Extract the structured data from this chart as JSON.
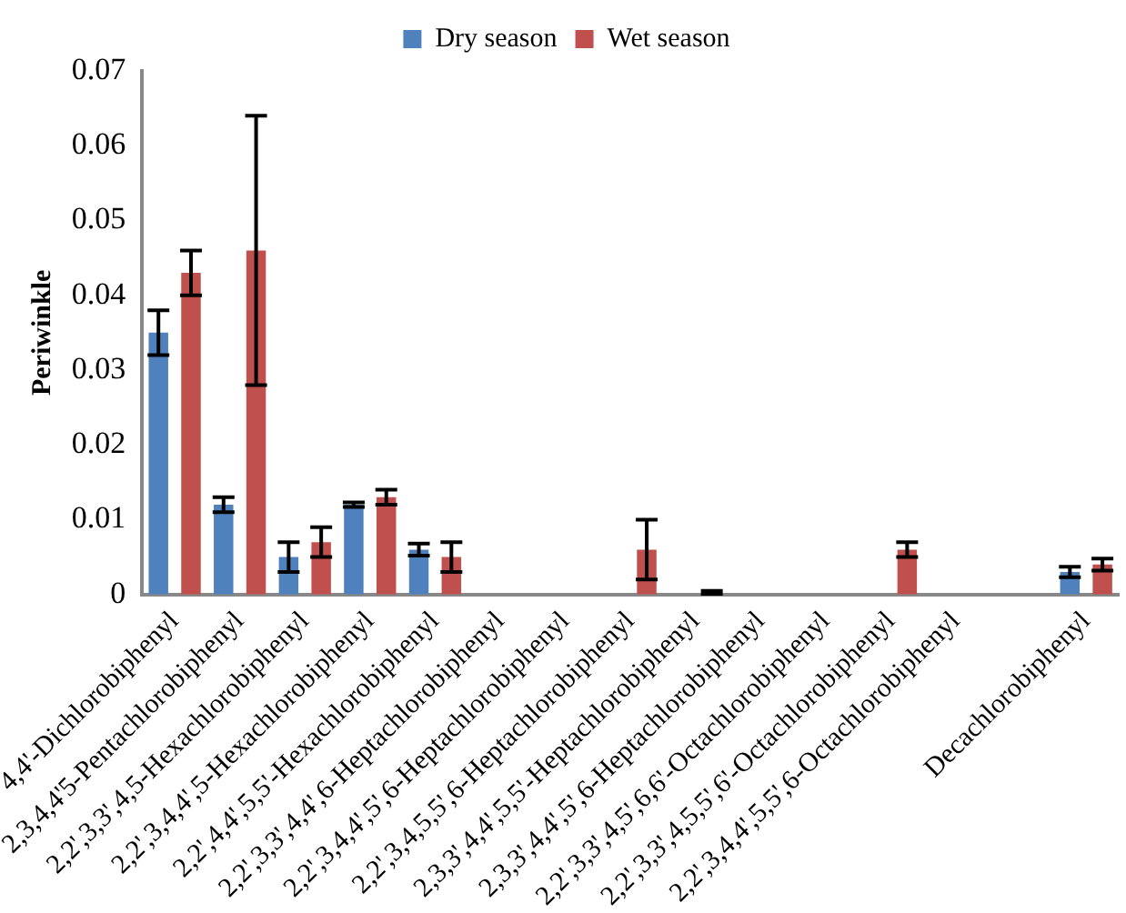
{
  "chart_data": {
    "type": "bar",
    "ylabel": "Periwinkle",
    "categories": [
      "4,4'-Dichlorobiphenyl",
      "2,3,4,4'5-Pentachlorobiphenyl",
      "2,2',3,3',4,5-Hexachlorobiphenyl",
      "2,2',3,4,4',5-Hexachlorobiphenyl",
      "2,2',4,4',5,5'-Hexachlorobiphenyl",
      "2,2',3,3',4,4',6-Heptachlorobiphenyl",
      "2,2',3,4,4',5',6-Heptachlorobiphenyl",
      "2,2',3,4,5,5',6-Heptachlorobiphenyl",
      "2,3,3',4,4',5,5'-Heptachlorobiphenyl",
      "2,3,3',4,4',5',6-Heptachlorobiphenyl",
      "2,2',3,3',4,5',6,6'-Octachlorobiphenyl",
      "2,2',3,3',4,5,5',6'-Octachlorobiphenyl",
      "2,2',3,4,4',5,5',6-Octachlorobiphenyl",
      null,
      "Decachlorobiphenyl"
    ],
    "series": [
      {
        "name": "Dry season",
        "color": "#4f81bd",
        "values": [
          0.035,
          0.012,
          0.005,
          0.012,
          0.006,
          null,
          null,
          null,
          null,
          null,
          null,
          null,
          null,
          null,
          0.003
        ],
        "errors": [
          0.003,
          0.001,
          0.002,
          0.0003,
          0.0008,
          null,
          null,
          null,
          null,
          null,
          null,
          null,
          null,
          null,
          0.0007
        ]
      },
      {
        "name": "Wet season",
        "color": "#c0504d",
        "values": [
          0.043,
          0.046,
          0.007,
          0.013,
          0.005,
          null,
          null,
          0.006,
          0.0003,
          null,
          null,
          0.006,
          null,
          null,
          0.004
        ],
        "errors": [
          0.003,
          0.018,
          0.002,
          0.001,
          0.002,
          null,
          null,
          0.004,
          0.0002,
          null,
          null,
          0.001,
          null,
          null,
          0.0008
        ]
      }
    ],
    "ylim": [
      0,
      0.07
    ],
    "yticks": [
      0,
      0.01,
      0.02,
      0.03,
      0.04,
      0.05,
      0.06,
      0.07
    ],
    "grid": false,
    "legend": "top"
  }
}
